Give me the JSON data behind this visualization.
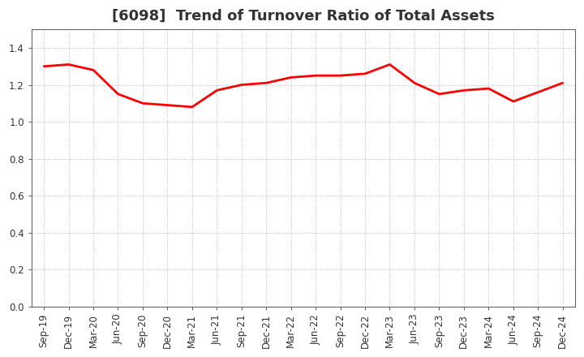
{
  "title": "[6098]  Trend of Turnover Ratio of Total Assets",
  "x_labels": [
    "Sep-19",
    "Dec-19",
    "Mar-20",
    "Jun-20",
    "Sep-20",
    "Dec-20",
    "Mar-21",
    "Jun-21",
    "Sep-21",
    "Dec-21",
    "Mar-22",
    "Jun-22",
    "Sep-22",
    "Dec-22",
    "Mar-23",
    "Jun-23",
    "Sep-23",
    "Dec-23",
    "Mar-24",
    "Jun-24",
    "Sep-24",
    "Dec-24"
  ],
  "values": [
    1.3,
    1.31,
    1.28,
    1.15,
    1.1,
    1.09,
    1.08,
    1.17,
    1.2,
    1.21,
    1.24,
    1.25,
    1.25,
    1.26,
    1.31,
    1.21,
    1.15,
    1.17,
    1.18,
    1.11,
    1.16,
    1.21
  ],
  "line_color": "#ff0000",
  "line_width": 2.0,
  "ylim": [
    0.0,
    1.5
  ],
  "yticks": [
    0.0,
    0.2,
    0.4,
    0.6,
    0.8,
    1.0,
    1.2,
    1.4
  ],
  "grid_color": "#aaaaaa",
  "bg_color": "#ffffff",
  "title_fontsize": 13,
  "tick_fontsize": 8.5,
  "title_color": "#333333"
}
